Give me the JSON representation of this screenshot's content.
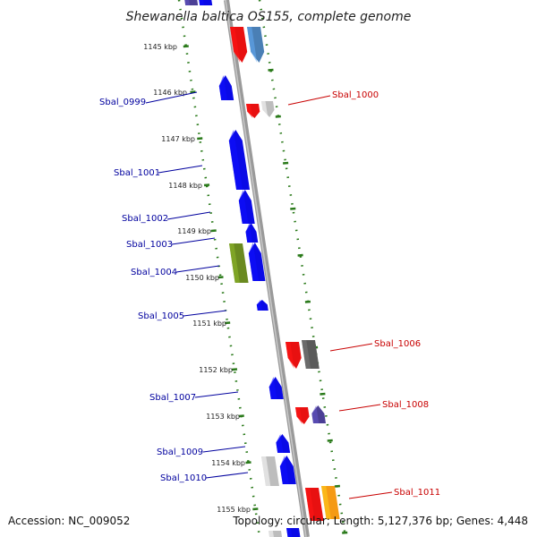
{
  "title": "Shewanella baltica OS155, complete genome",
  "footer": {
    "accession": "Accession: NC_009052",
    "topology": "Topology: circular; Length: 5,127,376 bp; Genes: 4,448"
  },
  "colors": {
    "backbone": "#8a8a8a",
    "tick": "#2a7a1a",
    "left_label": "#00009e",
    "right_label": "#c80000",
    "blue": "#0a0ae6",
    "red": "#e81010",
    "gray": "#bdbdbd",
    "darkgray": "#5a5a5a",
    "steelblue": "#4a7fb5",
    "olive": "#6a8a20",
    "slate": "#4b3f95",
    "orange": "#f59a14"
  },
  "kbp_labels": [
    "1145 kbp",
    "1146 kbp",
    "1147 kbp",
    "1148 kbp",
    "1149 kbp",
    "1150 kbp",
    "1151 kbp",
    "1152 kbp",
    "1153 kbp",
    "1154 kbp",
    "1155 kbp"
  ],
  "left_genes": [
    "Sbal_0999",
    "Sbal_1001",
    "Sbal_1002",
    "Sbal_1003",
    "Sbal_1004",
    "Sbal_1005",
    "Sbal_1007",
    "Sbal_1009",
    "Sbal_1010"
  ],
  "right_genes": [
    "Sbal_1000",
    "Sbal_1006",
    "Sbal_1008",
    "Sbal_1011"
  ]
}
